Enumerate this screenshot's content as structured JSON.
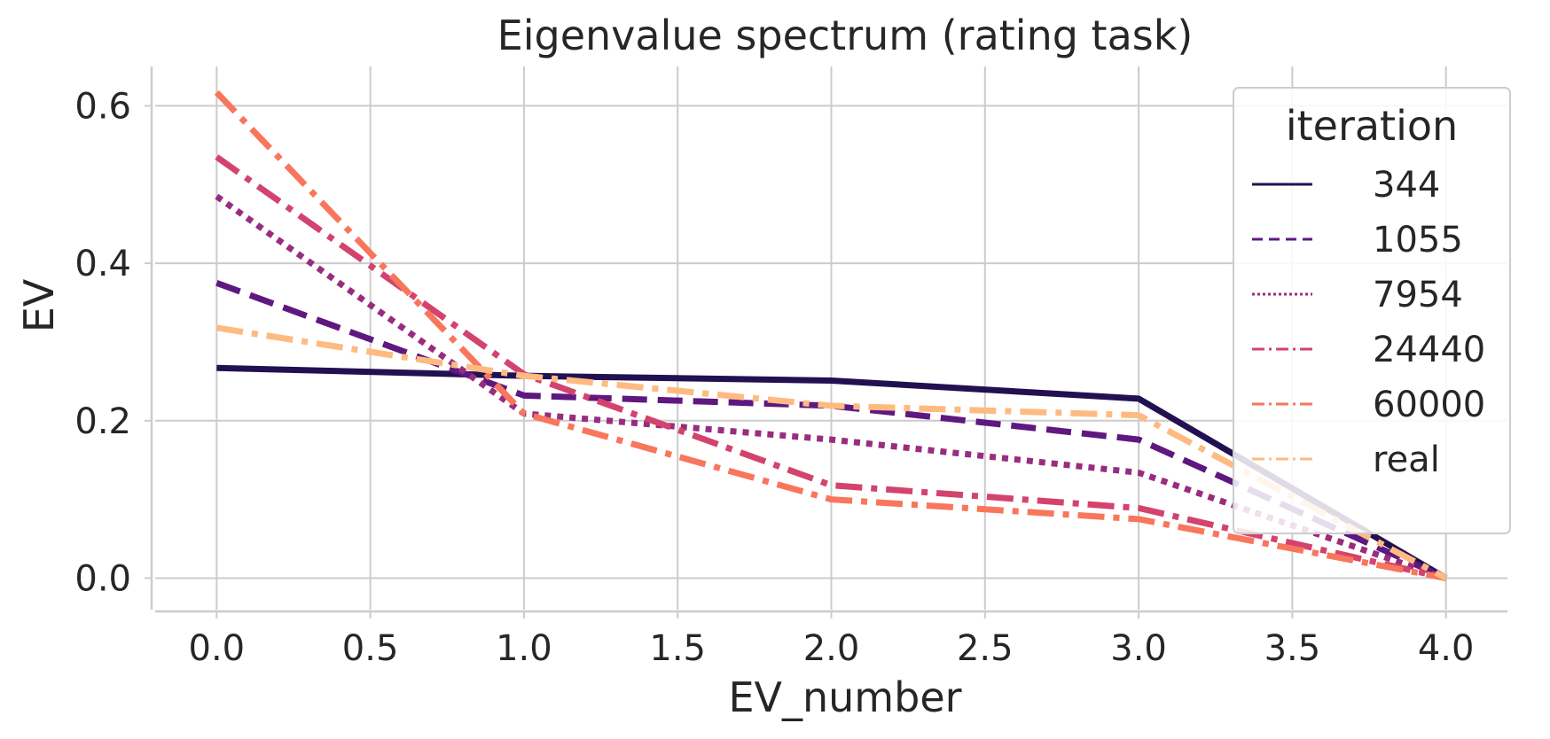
{
  "chart_data": {
    "type": "line",
    "title": "Eigenvalue spectrum (rating task)",
    "xlabel": "EV_number",
    "ylabel": "EV",
    "x": [
      0,
      1,
      2,
      3,
      4
    ],
    "xlim": [
      -0.2,
      4.2
    ],
    "ylim": [
      -0.04,
      0.65
    ],
    "xticks": [
      0.0,
      0.5,
      1.0,
      1.5,
      2.0,
      2.5,
      3.0,
      3.5,
      4.0
    ],
    "xtick_labels": [
      "0.0",
      "0.5",
      "1.0",
      "1.5",
      "2.0",
      "2.5",
      "3.0",
      "3.5",
      "4.0"
    ],
    "yticks": [
      0.0,
      0.2,
      0.4,
      0.6
    ],
    "ytick_labels": [
      "0.0",
      "0.2",
      "0.4",
      "0.6"
    ],
    "grid": true,
    "legend": {
      "title": "iteration",
      "placement": "top-right"
    },
    "series": [
      {
        "name": "344",
        "color": "#221150",
        "dash": "solid",
        "values": [
          0.267,
          0.257,
          0.251,
          0.228,
          0.0
        ]
      },
      {
        "name": "1055",
        "color": "#5f187f",
        "dash": "dashed",
        "values": [
          0.375,
          0.232,
          0.219,
          0.176,
          0.0
        ]
      },
      {
        "name": "7954",
        "color": "#982d80",
        "dash": "dotted",
        "values": [
          0.485,
          0.209,
          0.176,
          0.134,
          0.0
        ]
      },
      {
        "name": "24440",
        "color": "#d3436e",
        "dash": "dashdot",
        "values": [
          0.535,
          0.259,
          0.118,
          0.089,
          0.0
        ]
      },
      {
        "name": "60000",
        "color": "#f8765c",
        "dash": "dashdot",
        "values": [
          0.617,
          0.209,
          0.1,
          0.075,
          0.0
        ]
      },
      {
        "name": "real",
        "color": "#febb81",
        "dash": "dashdot",
        "values": [
          0.318,
          0.257,
          0.219,
          0.207,
          0.0
        ]
      }
    ]
  }
}
